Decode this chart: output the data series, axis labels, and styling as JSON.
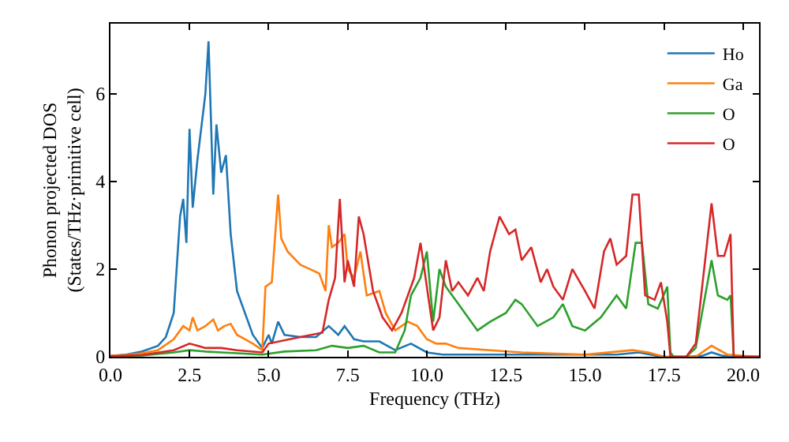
{
  "chart_data": {
    "type": "line",
    "xlabel": "Frequency (THz)",
    "ylabel": "Phonon projected DOS\n(States/THz·primitive cell)",
    "xlim": [
      0,
      20.5
    ],
    "ylim": [
      0,
      7.6
    ],
    "xticks": [
      {
        "value": 0,
        "label": "0.0"
      },
      {
        "value": 2.5,
        "label": "2.5"
      },
      {
        "value": 5,
        "label": "5.0"
      },
      {
        "value": 7.5,
        "label": "7.5"
      },
      {
        "value": 10,
        "label": "10.0"
      },
      {
        "value": 12.5,
        "label": "12.5"
      },
      {
        "value": 15,
        "label": "15.0"
      },
      {
        "value": 17.5,
        "label": "17.5"
      },
      {
        "value": 20,
        "label": "20.0"
      }
    ],
    "yticks": [
      0,
      2,
      4,
      6
    ],
    "legend": "top right",
    "marker": "none",
    "line_style": "solid",
    "series": [
      {
        "name": "Ho",
        "color": "#1f77b4",
        "x": [
          0,
          0.5,
          1.0,
          1.5,
          1.75,
          2.0,
          2.2,
          2.3,
          2.4,
          2.5,
          2.6,
          2.75,
          3.0,
          3.1,
          3.25,
          3.35,
          3.5,
          3.65,
          3.8,
          4.0,
          4.5,
          4.8,
          5.0,
          5.1,
          5.3,
          5.5,
          6.0,
          6.5,
          6.9,
          7.2,
          7.4,
          7.7,
          8.0,
          8.5,
          9.0,
          9.5,
          10.0,
          10.5,
          11,
          12,
          13,
          14,
          15,
          16,
          16.7,
          17.2,
          17.5,
          18.2,
          18.7,
          19.0,
          19.3,
          19.6,
          20.0,
          20.5
        ],
        "values": [
          0.02,
          0.05,
          0.12,
          0.25,
          0.45,
          1.0,
          3.2,
          3.6,
          2.6,
          5.2,
          3.4,
          4.5,
          6.0,
          7.2,
          3.7,
          5.3,
          4.2,
          4.6,
          2.8,
          1.5,
          0.5,
          0.2,
          0.5,
          0.3,
          0.8,
          0.5,
          0.45,
          0.45,
          0.7,
          0.5,
          0.7,
          0.4,
          0.35,
          0.35,
          0.15,
          0.3,
          0.1,
          0.05,
          0.05,
          0.05,
          0.05,
          0.05,
          0.05,
          0.05,
          0.1,
          0.03,
          0,
          0,
          0.02,
          0.1,
          0.03,
          0,
          0,
          0
        ]
      },
      {
        "name": "Ga",
        "color": "#ff7f0e",
        "x": [
          0,
          0.5,
          1.0,
          1.5,
          2.0,
          2.3,
          2.5,
          2.6,
          2.75,
          3.0,
          3.25,
          3.4,
          3.6,
          3.8,
          4.0,
          4.5,
          4.8,
          4.9,
          5.1,
          5.3,
          5.4,
          5.6,
          6.0,
          6.3,
          6.6,
          6.8,
          6.9,
          7.0,
          7.2,
          7.4,
          7.5,
          7.7,
          7.9,
          8.1,
          8.5,
          8.7,
          9.0,
          9.4,
          9.7,
          10.0,
          10.3,
          10.6,
          11,
          12,
          13,
          15,
          16.5,
          17,
          17.5,
          18.5,
          19.0,
          19.5,
          20.0,
          20.5
        ],
        "values": [
          0.02,
          0.04,
          0.08,
          0.15,
          0.4,
          0.7,
          0.6,
          0.9,
          0.6,
          0.7,
          0.85,
          0.6,
          0.7,
          0.75,
          0.5,
          0.3,
          0.15,
          1.6,
          1.7,
          3.7,
          2.7,
          2.4,
          2.1,
          2.0,
          1.9,
          1.5,
          3.0,
          2.5,
          2.6,
          2.8,
          2.0,
          1.8,
          2.4,
          1.4,
          1.5,
          1.0,
          0.6,
          0.8,
          0.7,
          0.4,
          0.3,
          0.3,
          0.2,
          0.15,
          0.1,
          0.05,
          0.15,
          0.1,
          0,
          0,
          0.25,
          0.05,
          0.02,
          0
        ]
      },
      {
        "name": "O",
        "color": "#2ca02c",
        "x": [
          0,
          1.0,
          2.0,
          2.5,
          3.0,
          3.5,
          4.0,
          4.8,
          5.5,
          6.5,
          7.0,
          7.5,
          8.0,
          8.5,
          9.0,
          9.3,
          9.5,
          9.8,
          10.0,
          10.2,
          10.4,
          10.6,
          11.0,
          11.3,
          11.6,
          12.0,
          12.5,
          12.8,
          13.0,
          13.5,
          14.0,
          14.3,
          14.6,
          15.0,
          15.5,
          16.0,
          16.3,
          16.6,
          16.8,
          17.0,
          17.3,
          17.6,
          17.7,
          17.8,
          18.2,
          18.5,
          19.0,
          19.2,
          19.5,
          19.6,
          19.7,
          20.5
        ],
        "values": [
          0.01,
          0.03,
          0.1,
          0.15,
          0.12,
          0.1,
          0.08,
          0.05,
          0.12,
          0.15,
          0.25,
          0.2,
          0.25,
          0.1,
          0.1,
          0.6,
          1.4,
          1.8,
          2.4,
          0.8,
          2.0,
          1.6,
          1.2,
          0.9,
          0.6,
          0.8,
          1.0,
          1.3,
          1.2,
          0.7,
          0.9,
          1.2,
          0.7,
          0.6,
          0.9,
          1.4,
          1.1,
          2.6,
          2.6,
          1.2,
          1.1,
          1.6,
          0.1,
          0,
          0,
          0.2,
          2.2,
          1.4,
          1.3,
          1.4,
          0,
          0
        ]
      },
      {
        "name": "O",
        "color": "#d62728",
        "x": [
          0,
          1.0,
          2.0,
          2.5,
          3.0,
          3.5,
          4.0,
          4.8,
          5.0,
          6.0,
          6.7,
          6.9,
          7.1,
          7.25,
          7.4,
          7.5,
          7.7,
          7.85,
          8.0,
          8.3,
          8.6,
          8.9,
          9.2,
          9.6,
          9.8,
          10.0,
          10.2,
          10.4,
          10.6,
          10.8,
          11.0,
          11.3,
          11.6,
          11.8,
          12.0,
          12.3,
          12.6,
          12.8,
          13.0,
          13.3,
          13.6,
          13.8,
          14.0,
          14.3,
          14.6,
          15.0,
          15.3,
          15.6,
          15.8,
          16.0,
          16.3,
          16.5,
          16.7,
          16.9,
          17.2,
          17.4,
          17.6,
          17.7,
          18.2,
          18.5,
          19.0,
          19.2,
          19.4,
          19.6,
          19.7,
          20.5
        ],
        "values": [
          0.01,
          0.04,
          0.15,
          0.3,
          0.2,
          0.2,
          0.15,
          0.1,
          0.3,
          0.45,
          0.55,
          1.3,
          1.8,
          3.6,
          1.7,
          2.2,
          1.6,
          3.2,
          2.8,
          1.5,
          0.9,
          0.6,
          1.0,
          1.8,
          2.6,
          1.6,
          0.6,
          0.9,
          2.2,
          1.5,
          1.7,
          1.4,
          1.8,
          1.5,
          2.4,
          3.2,
          2.8,
          2.9,
          2.2,
          2.5,
          1.7,
          2.0,
          1.6,
          1.3,
          2.0,
          1.5,
          1.1,
          2.4,
          2.7,
          2.1,
          2.3,
          3.7,
          3.7,
          1.4,
          1.3,
          1.7,
          0.8,
          0,
          0,
          0.3,
          3.5,
          2.3,
          2.3,
          2.8,
          0,
          0
        ]
      }
    ]
  }
}
